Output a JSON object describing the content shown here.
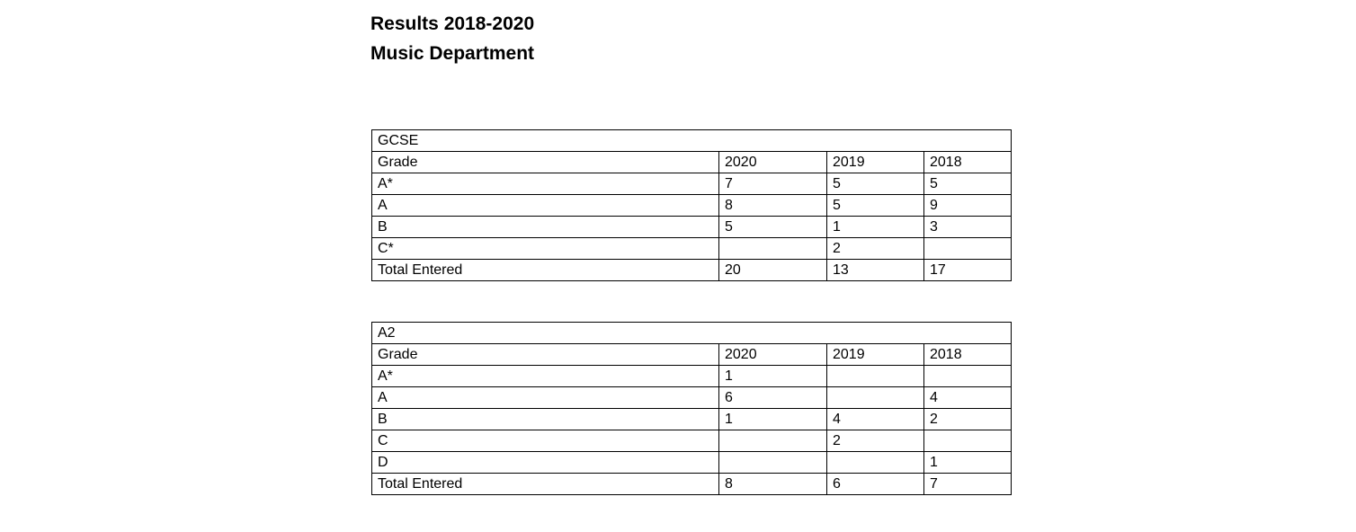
{
  "page": {
    "title_line1": "Results 2018-2020",
    "title_line2": "Music Department"
  },
  "tables": [
    {
      "name": "GCSE",
      "columns": [
        "Grade",
        "2020",
        "2019",
        "2018"
      ],
      "rows": [
        [
          "A*",
          "7",
          "5",
          "5"
        ],
        [
          "A",
          "8",
          "5",
          "9"
        ],
        [
          "B",
          "5",
          "1",
          "3"
        ],
        [
          "C*",
          "",
          "2",
          ""
        ],
        [
          "Total Entered",
          "20",
          "13",
          "17"
        ]
      ]
    },
    {
      "name": "A2",
      "columns": [
        "Grade",
        "2020",
        "2019",
        "2018"
      ],
      "rows": [
        [
          "A*",
          "1",
          "",
          ""
        ],
        [
          "A",
          "6",
          "",
          "4"
        ],
        [
          "B",
          "1",
          "4",
          "2"
        ],
        [
          "C",
          "",
          "2",
          ""
        ],
        [
          "D",
          "",
          "",
          "1"
        ],
        [
          "Total Entered",
          "8",
          "6",
          "7"
        ]
      ]
    }
  ],
  "colors": {
    "text": "#000000",
    "background": "#ffffff",
    "table_border": "#000000"
  }
}
